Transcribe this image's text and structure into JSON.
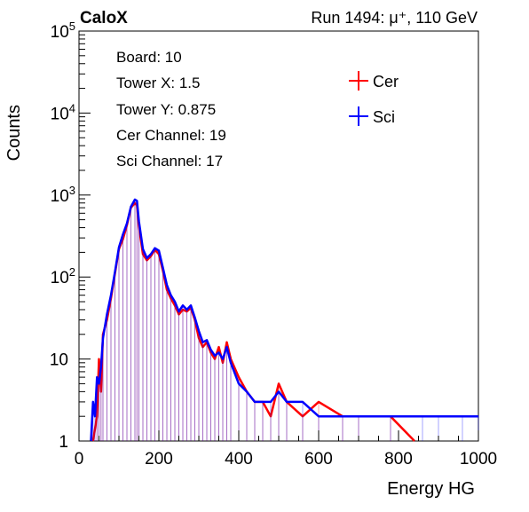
{
  "header": {
    "brand": "CaloX",
    "run_info": "Run 1494:   μ⁺, 110 GeV"
  },
  "info_box": {
    "lines": [
      "Board: 10",
      "Tower X: 1.5",
      "Tower Y: 0.875",
      "Cer Channel: 19",
      "Sci Channel: 17"
    ]
  },
  "chart_data": {
    "type": "line",
    "title": "",
    "xlabel": "Energy HG",
    "ylabel": "Counts",
    "xlim": [
      0,
      1000
    ],
    "ylim": [
      1,
      100000
    ],
    "y_scale": "log",
    "grid": false,
    "legend_position": "top-right",
    "x_ticks": [
      0,
      200,
      400,
      600,
      800,
      1000
    ],
    "x_tick_labels": [
      "0",
      "200",
      "400",
      "600",
      "800",
      "1000"
    ],
    "y_ticks": [
      1,
      10,
      100,
      1000,
      10000,
      100000
    ],
    "y_tick_labels": [
      {
        "base": "1",
        "exp": ""
      },
      {
        "base": "10",
        "exp": ""
      },
      {
        "base": "10",
        "exp": "2"
      },
      {
        "base": "10",
        "exp": "3"
      },
      {
        "base": "10",
        "exp": "4"
      },
      {
        "base": "10",
        "exp": "5"
      }
    ],
    "series": [
      {
        "name": "Cer",
        "color": "#ff0000",
        "x": [
          35,
          45,
          50,
          55,
          60,
          70,
          80,
          90,
          100,
          110,
          120,
          130,
          140,
          145,
          150,
          160,
          170,
          180,
          190,
          200,
          210,
          220,
          230,
          240,
          250,
          260,
          270,
          280,
          290,
          300,
          310,
          320,
          330,
          340,
          350,
          360,
          370,
          380,
          400,
          420,
          440,
          460,
          480,
          500,
          520,
          560,
          600,
          660,
          700,
          780,
          840
        ],
        "values": [
          1,
          2,
          10,
          4,
          20,
          30,
          55,
          110,
          220,
          290,
          430,
          700,
          800,
          750,
          420,
          190,
          160,
          180,
          215,
          190,
          120,
          70,
          55,
          45,
          35,
          40,
          38,
          42,
          30,
          18,
          14,
          16,
          12,
          10,
          14,
          9,
          16,
          10,
          6,
          4,
          3,
          3,
          2,
          5,
          3,
          2,
          3,
          2,
          2,
          2,
          1
        ]
      },
      {
        "name": "Sci",
        "color": "#0000ff",
        "x": [
          30,
          35,
          40,
          45,
          50,
          55,
          60,
          70,
          80,
          90,
          100,
          110,
          120,
          130,
          140,
          145,
          150,
          160,
          170,
          180,
          190,
          200,
          210,
          220,
          230,
          240,
          250,
          260,
          270,
          280,
          290,
          300,
          310,
          320,
          330,
          340,
          350,
          360,
          370,
          380,
          400,
          420,
          440,
          460,
          480,
          500,
          520,
          560,
          600,
          660,
          700,
          780,
          860,
          900,
          960,
          1000
        ],
        "values": [
          1,
          3,
          2,
          6,
          5,
          8,
          18,
          35,
          60,
          115,
          230,
          330,
          450,
          720,
          880,
          850,
          480,
          220,
          170,
          190,
          225,
          210,
          130,
          80,
          60,
          50,
          38,
          45,
          40,
          45,
          32,
          22,
          16,
          17,
          13,
          11,
          12,
          10,
          14,
          9,
          5,
          4,
          3,
          3,
          3,
          4,
          3,
          3,
          2,
          2,
          2,
          2,
          2,
          2,
          2,
          2
        ]
      }
    ]
  }
}
